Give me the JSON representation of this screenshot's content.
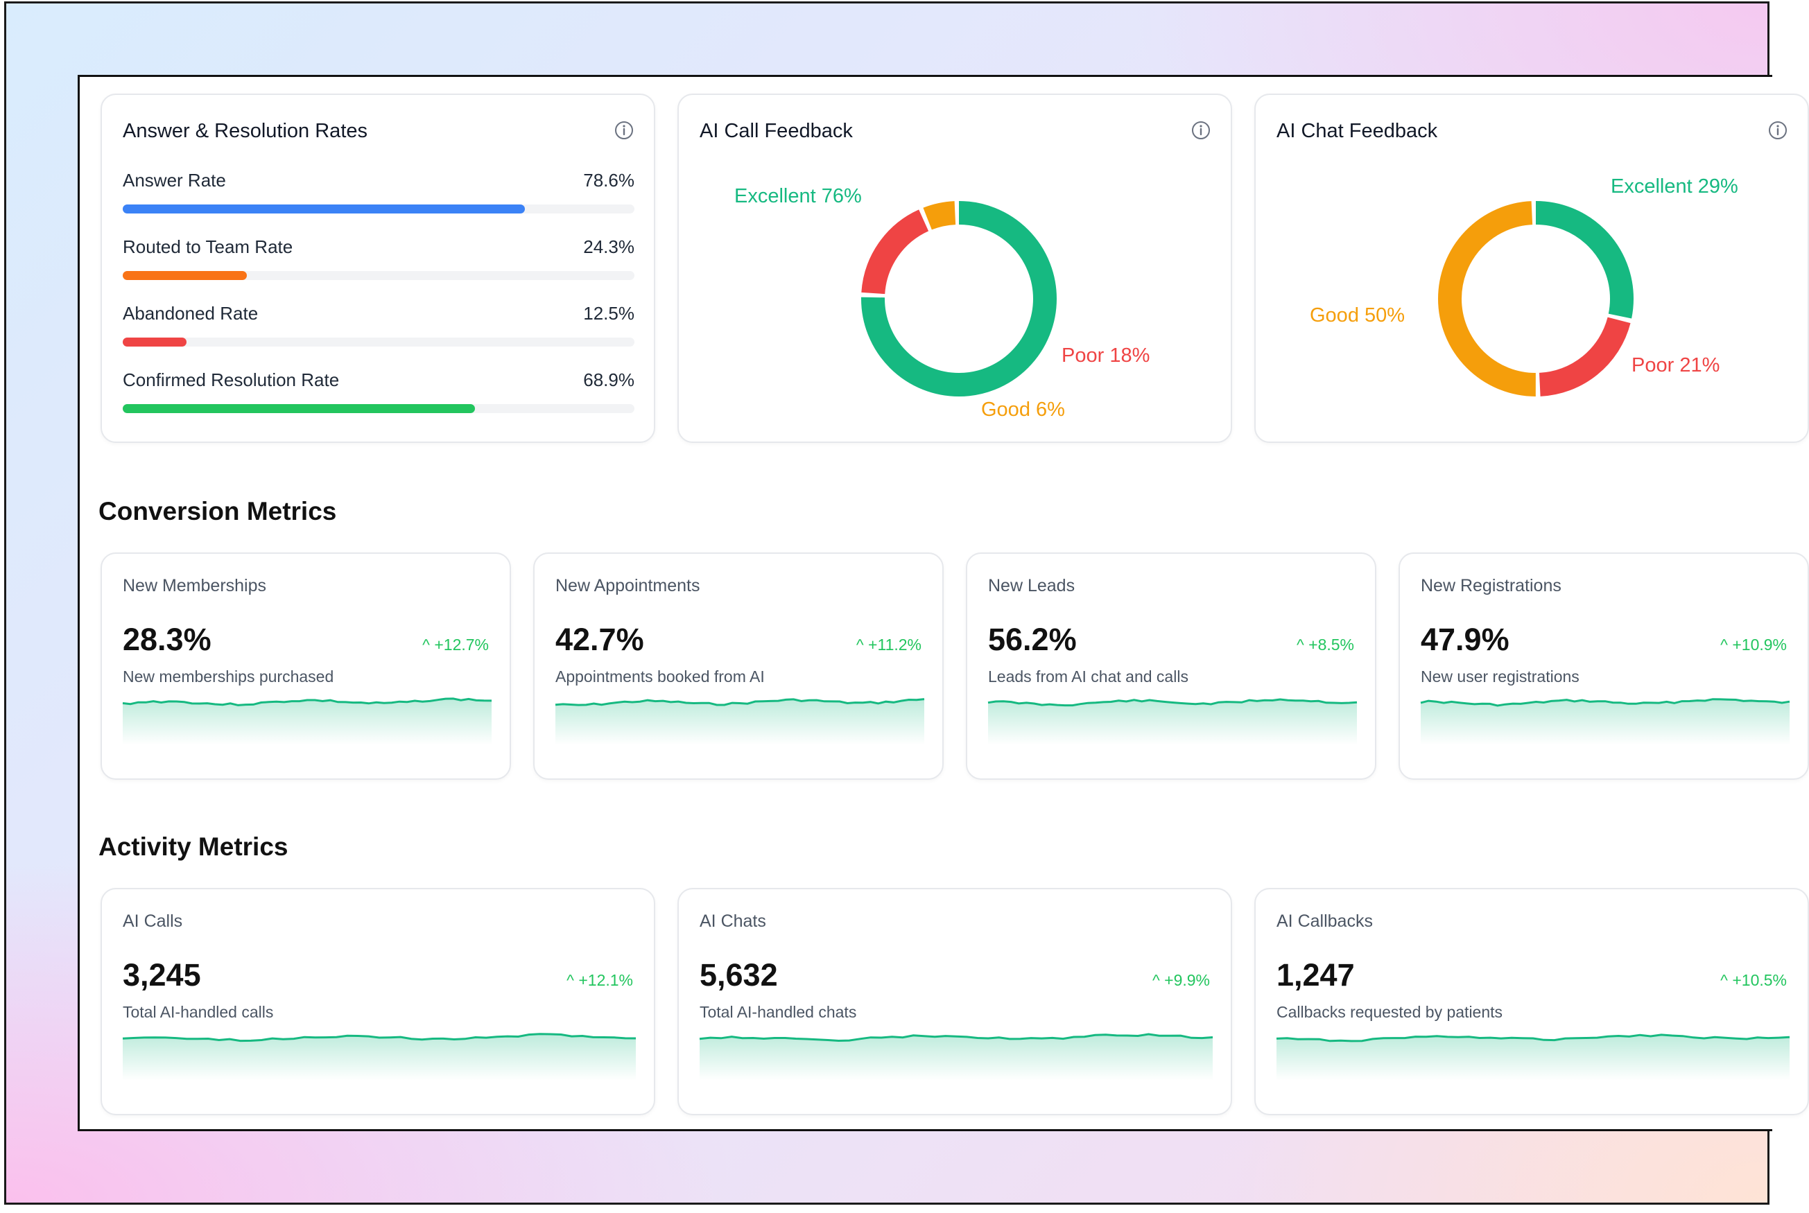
{
  "rates": {
    "title": "Answer & Resolution Rates",
    "items": [
      {
        "label": "Answer Rate",
        "value": "78.6%",
        "pct": 78.6,
        "color": "#3b82f6"
      },
      {
        "label": "Routed to Team Rate",
        "value": "24.3%",
        "pct": 24.3,
        "color": "#f97316"
      },
      {
        "label": "Abandoned Rate",
        "value": "12.5%",
        "pct": 12.5,
        "color": "#ef4444"
      },
      {
        "label": "Confirmed Resolution Rate",
        "value": "68.9%",
        "pct": 68.9,
        "color": "#22c55e"
      }
    ]
  },
  "call_feedback": {
    "title": "AI Call Feedback",
    "segments": [
      {
        "label": "Excellent 76%",
        "value": 76,
        "color": "#16b981"
      },
      {
        "label": "Poor 18%",
        "value": 18,
        "color": "#ef4444"
      },
      {
        "label": "Good 6%",
        "value": 6,
        "color": "#f59e0b"
      }
    ]
  },
  "chat_feedback": {
    "title": "AI Chat Feedback",
    "segments": [
      {
        "label": "Excellent 29%",
        "value": 29,
        "color": "#16b981"
      },
      {
        "label": "Poor 21%",
        "value": 21,
        "color": "#ef4444"
      },
      {
        "label": "Good 50%",
        "value": 50,
        "color": "#f59e0b"
      }
    ]
  },
  "conversion": {
    "title": "Conversion Metrics",
    "cards": [
      {
        "title": "New Memberships",
        "value": "28.3%",
        "change": "+12.7%",
        "desc": "New memberships purchased"
      },
      {
        "title": "New Appointments",
        "value": "42.7%",
        "change": "+11.2%",
        "desc": "Appointments booked from AI"
      },
      {
        "title": "New Leads",
        "value": "56.2%",
        "change": "+8.5%",
        "desc": "Leads from AI chat and calls"
      },
      {
        "title": "New Registrations",
        "value": "47.9%",
        "change": "+10.9%",
        "desc": "New user registrations"
      }
    ]
  },
  "activity": {
    "title": "Activity Metrics",
    "cards": [
      {
        "title": "AI Calls",
        "value": "3,245",
        "change": "+12.1%",
        "desc": "Total AI-handled calls"
      },
      {
        "title": "AI Chats",
        "value": "5,632",
        "change": "+9.9%",
        "desc": "Total AI-handled chats"
      },
      {
        "title": "AI Callbacks",
        "value": "1,247",
        "change": "+10.5%",
        "desc": "Callbacks requested by patients"
      }
    ]
  },
  "colors": {
    "accent_green": "#22c55e",
    "spark_line": "#16b981"
  },
  "icons": {
    "info": "info-icon",
    "trend": "chevron-up-icon"
  }
}
